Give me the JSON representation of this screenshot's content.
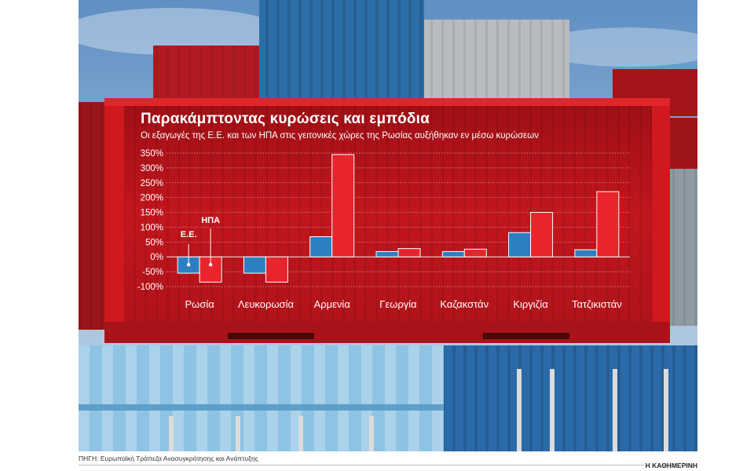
{
  "chart_data": {
    "type": "bar",
    "title": "Παρακάμπτοντας κυρώσεις και εμπόδια",
    "subtitle": "Οι εξαγωγές της Ε.Ε. και των ΗΠΑ στις γειτονικές χώρες της Ρωσίας αυξήθηκαν εν μέσω κυρώσεων",
    "categories": [
      "Ρωσία",
      "Λευκορωσία",
      "Αρμενία",
      "Γεωργία",
      "Καζακστάν",
      "Κιργιζία",
      "Τατζικιστάν"
    ],
    "series": [
      {
        "name": "Ε.Ε.",
        "color": "#2e7fc2",
        "values": [
          -55,
          -55,
          68,
          18,
          18,
          82,
          24
        ]
      },
      {
        "name": "ΗΠΑ",
        "color": "#e8242c",
        "values": [
          -85,
          -85,
          345,
          28,
          26,
          150,
          220
        ]
      }
    ],
    "yticks": [
      350,
      300,
      250,
      200,
      150,
      100,
      50,
      0,
      -50,
      -100
    ],
    "ytick_labels": [
      "350%",
      "300%",
      "250%",
      "200%",
      "150%",
      "100%",
      "50%",
      "0%",
      "-50%",
      "-100%"
    ],
    "ylim": [
      -100,
      350
    ],
    "grid": true,
    "legend": "inline-callouts"
  },
  "footer": {
    "source": "ΠΗΓΗ: Ευρωπαϊκή Τράπεζα Ανασυγκρότησης και Ανάπτυξης",
    "brand": "Η ΚΑΘΗΜΕΡΙΝΗ"
  },
  "colors": {
    "container_red": "#c8161d",
    "container_blue": "#2e7fc2",
    "sky": "#8fb3d6"
  }
}
